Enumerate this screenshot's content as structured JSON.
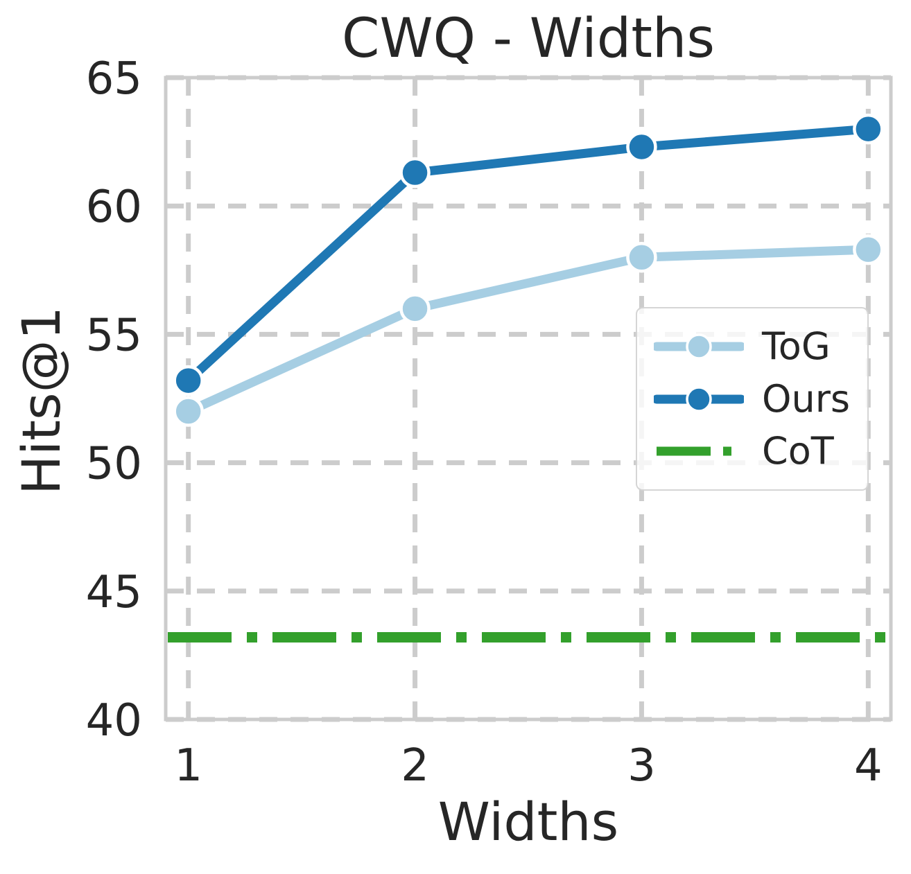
{
  "chart_data": {
    "type": "line",
    "title": "CWQ - Widths",
    "xlabel": "Widths",
    "ylabel": "Hits@1",
    "x": [
      1,
      2,
      3,
      4
    ],
    "xticks": [
      1,
      2,
      3,
      4
    ],
    "yticks": [
      40,
      45,
      50,
      55,
      60,
      65
    ],
    "xlim": [
      0.9,
      4.1
    ],
    "ylim": [
      40,
      65
    ],
    "grid": "dashed",
    "legend_position": "center-right",
    "series": [
      {
        "name": "ToG",
        "type": "line",
        "color": "#a6cee3",
        "marker": "circle",
        "values": [
          52.0,
          56.0,
          58.0,
          58.3
        ]
      },
      {
        "name": "Ours",
        "type": "line",
        "color": "#1f78b4",
        "marker": "circle",
        "values": [
          53.2,
          61.3,
          62.3,
          63.0
        ]
      },
      {
        "name": "CoT",
        "type": "hline",
        "color": "#33a02c",
        "linestyle": "dashdot",
        "value": 43.2
      }
    ],
    "colors": {
      "text": "#262626",
      "grid": "#cccccc",
      "frame": "#cccccc",
      "background": "#ffffff"
    }
  }
}
